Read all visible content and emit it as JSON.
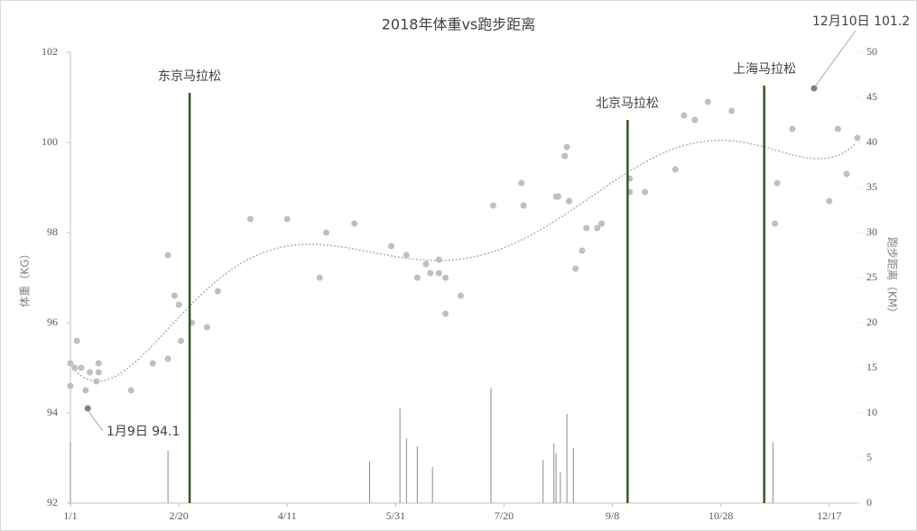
{
  "chart_data": {
    "type": "scatter-bar",
    "title": "2018年体重vs跑步距离",
    "y_label": "体重（KG）",
    "y2_label": "跑步距离（KM）",
    "xlim": [
      0,
      363
    ],
    "xticks": [
      {
        "value": 0,
        "label": "1/1"
      },
      {
        "value": 50,
        "label": "2/20"
      },
      {
        "value": 100,
        "label": "4/11"
      },
      {
        "value": 150,
        "label": "5/31"
      },
      {
        "value": 200,
        "label": "7/20"
      },
      {
        "value": 250,
        "label": "9/8"
      },
      {
        "value": 300,
        "label": "10/28"
      },
      {
        "value": 350,
        "label": "12/17"
      }
    ],
    "ylim": [
      92,
      102
    ],
    "yticks": [
      92,
      94,
      96,
      98,
      100,
      102
    ],
    "y2lim": [
      0,
      50
    ],
    "y2ticks": [
      0,
      5,
      10,
      15,
      20,
      25,
      30,
      35,
      40,
      45,
      50
    ],
    "trendline": true,
    "trend_color": "#b0b0b0",
    "series": [
      {
        "type": "scatter",
        "axis": "y",
        "x": [
          0,
          0,
          2,
          3,
          5,
          7,
          8,
          9,
          12,
          13,
          13,
          28,
          38,
          45,
          45,
          48,
          50,
          51,
          56,
          63,
          68,
          83,
          100,
          115,
          118,
          131,
          148,
          155,
          160,
          164,
          166,
          170,
          170,
          173,
          173,
          180,
          195,
          208,
          209,
          224,
          225,
          228,
          229,
          230,
          233,
          236,
          238,
          243,
          245,
          258,
          258,
          265,
          279,
          283,
          288,
          294,
          305,
          325,
          326,
          333,
          343,
          350,
          354,
          358,
          363
        ],
        "values": [
          95.1,
          94.6,
          95.0,
          95.6,
          95.0,
          94.5,
          94.1,
          94.9,
          94.7,
          94.9,
          95.1,
          94.5,
          95.1,
          95.2,
          97.5,
          96.6,
          96.4,
          95.6,
          96.0,
          95.9,
          96.7,
          98.3,
          98.3,
          97.0,
          98.0,
          98.2,
          97.7,
          97.5,
          97.0,
          97.3,
          97.1,
          97.1,
          97.4,
          97.0,
          96.2,
          96.6,
          98.6,
          99.1,
          98.6,
          98.8,
          98.8,
          99.7,
          99.9,
          98.7,
          97.2,
          97.6,
          98.1,
          98.1,
          98.2,
          99.2,
          98.9,
          98.9,
          99.4,
          100.6,
          100.5,
          100.9,
          100.7,
          98.2,
          99.1,
          100.3,
          101.2,
          98.7,
          100.3,
          99.3,
          100.1
        ],
        "colors": [
          "#bfbfbf",
          "#bfbfbf",
          "#bfbfbf",
          "#bfbfbf",
          "#bfbfbf",
          "#bfbfbf",
          "#7f7f7f",
          "#bfbfbf",
          "#bfbfbf",
          "#bfbfbf",
          "#bfbfbf",
          "#bfbfbf",
          "#bfbfbf",
          "#bfbfbf",
          "#bfbfbf",
          "#bfbfbf",
          "#bfbfbf",
          "#bfbfbf",
          "#bfbfbf",
          "#bfbfbf",
          "#bfbfbf",
          "#bfbfbf",
          "#bfbfbf",
          "#bfbfbf",
          "#bfbfbf",
          "#bfbfbf",
          "#bfbfbf",
          "#bfbfbf",
          "#bfbfbf",
          "#bfbfbf",
          "#bfbfbf",
          "#bfbfbf",
          "#bfbfbf",
          "#bfbfbf",
          "#bfbfbf",
          "#bfbfbf",
          "#bfbfbf",
          "#bfbfbf",
          "#bfbfbf",
          "#bfbfbf",
          "#bfbfbf",
          "#bfbfbf",
          "#bfbfbf",
          "#bfbfbf",
          "#bfbfbf",
          "#bfbfbf",
          "#bfbfbf",
          "#bfbfbf",
          "#bfbfbf",
          "#bfbfbf",
          "#bfbfbf",
          "#bfbfbf",
          "#bfbfbf",
          "#bfbfbf",
          "#bfbfbf",
          "#bfbfbf",
          "#bfbfbf",
          "#bfbfbf",
          "#bfbfbf",
          "#bfbfbf",
          "#7f7f7f",
          "#bfbfbf",
          "#bfbfbf",
          "#bfbfbf",
          "#bfbfbf"
        ]
      },
      {
        "type": "bar",
        "axis": "y2",
        "x": [
          0,
          45,
          55,
          138,
          152,
          155,
          160,
          167,
          194,
          218,
          223,
          224,
          226,
          229,
          232,
          257,
          320,
          324
        ],
        "values": [
          6.8,
          5.8,
          45.5,
          4.6,
          10.5,
          7.2,
          6.3,
          4.0,
          12.8,
          4.8,
          6.6,
          5.5,
          3.4,
          9.9,
          6.1,
          42.5,
          46.3,
          6.8
        ],
        "colors": [
          "#8c8c8c",
          "#8c8c8c",
          "#375623",
          "#8c8c8c",
          "#8c8c8c",
          "#8c8c8c",
          "#8c8c8c",
          "#8c8c8c",
          "#8c8c8c",
          "#8c8c8c",
          "#8c8c8c",
          "#8c8c8c",
          "#8c8c8c",
          "#8c8c8c",
          "#8c8c8c",
          "#375623",
          "#375623",
          "#8c8c8c"
        ]
      }
    ],
    "annotations": [
      {
        "text": "东京马拉松"
      },
      {
        "text": "北京马拉松"
      },
      {
        "text": "上海马拉松"
      },
      {
        "text": "1月9日 94.1"
      },
      {
        "text": "12月10日 101.2"
      }
    ]
  }
}
